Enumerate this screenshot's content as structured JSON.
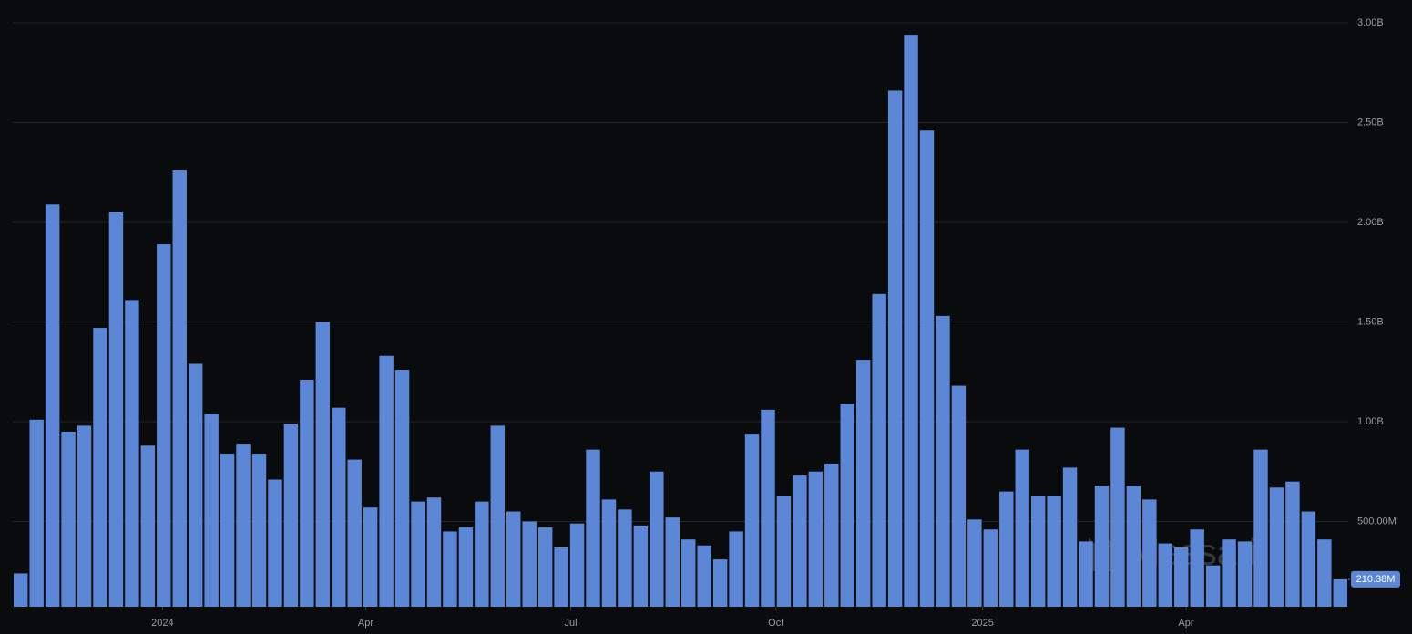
{
  "chart_data": {
    "type": "bar",
    "watermark": "Messari",
    "color": "#5b87d6",
    "values": [
      240000000,
      1010000000,
      2090000000,
      950000000,
      980000000,
      1470000000,
      2050000000,
      1610000000,
      880000000,
      1890000000,
      2260000000,
      1290000000,
      1040000000,
      840000000,
      890000000,
      840000000,
      710000000,
      990000000,
      1210000000,
      1500000000,
      1070000000,
      810000000,
      570000000,
      1330000000,
      1260000000,
      600000000,
      620000000,
      450000000,
      470000000,
      600000000,
      980000000,
      550000000,
      500000000,
      470000000,
      370000000,
      490000000,
      860000000,
      610000000,
      560000000,
      480000000,
      750000000,
      520000000,
      410000000,
      380000000,
      310000000,
      450000000,
      940000000,
      1060000000,
      630000000,
      730000000,
      750000000,
      790000000,
      1090000000,
      1310000000,
      1640000000,
      2660000000,
      2940000000,
      2460000000,
      1530000000,
      1180000000,
      510000000,
      460000000,
      650000000,
      860000000,
      630000000,
      630000000,
      770000000,
      400000000,
      680000000,
      970000000,
      680000000,
      610000000,
      390000000,
      370000000,
      460000000,
      280000000,
      410000000,
      400000000,
      860000000,
      670000000,
      700000000,
      550000000,
      410000000,
      210380000
    ],
    "value_labels": [
      null,
      null,
      null,
      null,
      null,
      null,
      null,
      null,
      null,
      null,
      null,
      null,
      null,
      null,
      null,
      null,
      null,
      null,
      null,
      null,
      null,
      null,
      null,
      null,
      null,
      null,
      null,
      null,
      null,
      null,
      null,
      null,
      null,
      null,
      null,
      null,
      null,
      null,
      null,
      null,
      null,
      null,
      null,
      null,
      null,
      null,
      null,
      null,
      null,
      null,
      null,
      null,
      null,
      null,
      null,
      null,
      null,
      null,
      null,
      null,
      null,
      null,
      null,
      null,
      null,
      null,
      null,
      null,
      null,
      null,
      null,
      null,
      null,
      null,
      null,
      null,
      null,
      null,
      null,
      null,
      null,
      null,
      null,
      "210.38M"
    ],
    "xticks": [
      {
        "value": 8.92,
        "label": "2024"
      },
      {
        "value": 21.7,
        "label": "Apr"
      },
      {
        "value": 34.6,
        "label": "Jul"
      },
      {
        "value": 47.5,
        "label": "Oct"
      },
      {
        "value": 60.5,
        "label": "2025"
      },
      {
        "value": 73.3,
        "label": "Apr"
      }
    ],
    "ylim": [
      73000000,
      3114000000
    ],
    "yticks": [
      {
        "value": 500000000,
        "label": "500.00M"
      },
      {
        "value": 1000000000,
        "label": "1.00B"
      },
      {
        "value": 1500000000,
        "label": "1.50B"
      },
      {
        "value": 2000000000,
        "label": "2.00B"
      },
      {
        "value": 2500000000,
        "label": "2.50B"
      },
      {
        "value": 3000000000,
        "label": "3.00B"
      }
    ],
    "grid": true
  }
}
